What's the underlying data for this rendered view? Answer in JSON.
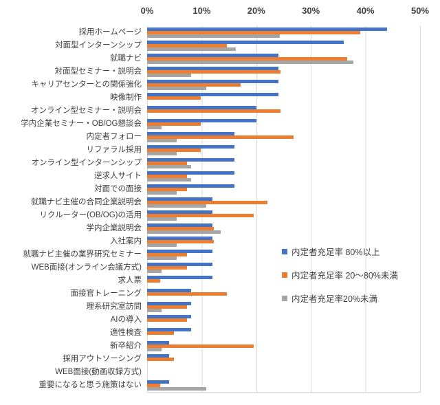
{
  "chart_data": {
    "type": "bar",
    "orientation": "horizontal",
    "title": "",
    "xlabel": "",
    "ylabel": "",
    "xlim": [
      0,
      50
    ],
    "x_ticks": [
      "0%",
      "10%",
      "20%",
      "30%",
      "40%",
      "50%"
    ],
    "grid": true,
    "legend_position": "right-inside",
    "categories": [
      "採用ホームページ",
      "対面型インターンシップ",
      "就職ナビ",
      "対面型セミナー・説明会",
      "キャリアセンターとの関係強化",
      "映像制作",
      "オンライン型セミナー・説明会",
      "学内企業セミナー・OB/OG懇談会",
      "内定者フォロー",
      "リファラル採用",
      "オンライン型インターンシップ",
      "逆求人サイト",
      "対面での面接",
      "就職ナビ主催の合同企業説明会",
      "リクルーター(OB/OG)の活用",
      "学内企業説明会",
      "入社案内",
      "就職ナビ主催の業界研究セミナー",
      "WEB面接(オンライン会議方式)",
      "求人票",
      "面接官トレーニング",
      "理系研究室訪問",
      "AIの導入",
      "適性検査",
      "新卒紹介",
      "採用アウトソーシング",
      "WEB面接(動画収録方式)",
      "重要になると思う施策はない"
    ],
    "series": [
      {
        "name": "内定者充足率 80%以上",
        "color": "#4472C4",
        "values": [
          44,
          36,
          24,
          24,
          24,
          24,
          20,
          20,
          16,
          16,
          16,
          16,
          16,
          12,
          12,
          12,
          12,
          12,
          12,
          12,
          8,
          8,
          8,
          8,
          4,
          4,
          0,
          4
        ]
      },
      {
        "name": "内定者充足率 20〜80%未満",
        "color": "#ED7D31",
        "values": [
          39.0,
          14.6,
          36.6,
          24.4,
          17.1,
          9.8,
          24.4,
          9.8,
          26.8,
          9.8,
          7.3,
          7.3,
          7.3,
          22.0,
          19.5,
          12.2,
          12.2,
          7.3,
          7.3,
          2.4,
          14.6,
          7.3,
          7.3,
          4.9,
          19.5,
          4.9,
          0,
          2.4
        ]
      },
      {
        "name": "内定者充足率20%未満",
        "color": "#A5A5A5",
        "values": [
          24.3,
          16.2,
          37.8,
          8.1,
          10.8,
          0,
          0,
          2.7,
          5.4,
          5.4,
          8.1,
          8.1,
          5.4,
          10.8,
          5.4,
          13.5,
          5.4,
          5.4,
          2.7,
          0,
          0,
          2.7,
          0,
          0,
          2.7,
          0,
          0,
          10.8
        ]
      }
    ],
    "gridline_color": "#D9D9D9",
    "text_color": "#3F3F3F"
  }
}
